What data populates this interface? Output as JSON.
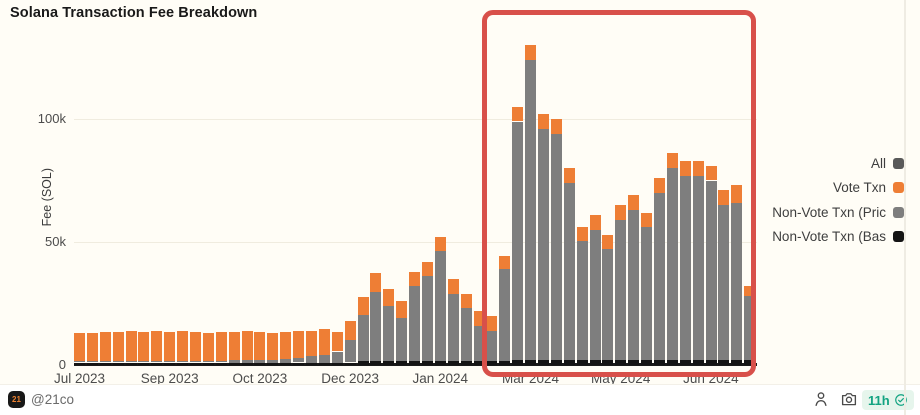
{
  "title": "Solana Transaction Fee Breakdown",
  "chart_data": {
    "type": "bar",
    "subtype": "stacked",
    "title": "Solana Transaction Fee Breakdown",
    "xlabel": "",
    "ylabel": "Fee (SOL)",
    "values_unit": "thousand SOL",
    "ylim": [
      0,
      140
    ],
    "grid": "horizontal",
    "legend_position": "right",
    "yticks": [
      {
        "value": 0,
        "label": "0"
      },
      {
        "value": 50,
        "label": "50k"
      },
      {
        "value": 100,
        "label": "100k"
      }
    ],
    "xticks": [
      {
        "bar_index": 0,
        "label": "Jul 2023"
      },
      {
        "bar_index": 7,
        "label": "Sep 2023"
      },
      {
        "bar_index": 14,
        "label": "Oct 2023"
      },
      {
        "bar_index": 21,
        "label": "Dec 2023"
      },
      {
        "bar_index": 28,
        "label": "Jan 2024"
      },
      {
        "bar_index": 35,
        "label": "Mar 2024"
      },
      {
        "bar_index": 42,
        "label": "May 2024"
      },
      {
        "bar_index": 49,
        "label": "Jun 2024"
      }
    ],
    "series": [
      {
        "name": "All",
        "color": "#595959",
        "role": "total"
      },
      {
        "name": "Vote Txn",
        "color": "#ee7e35",
        "key": "vote"
      },
      {
        "name": "Non-Vote Txn (Pric",
        "color": "#7e7e7e",
        "key": "priority"
      },
      {
        "name": "Non-Vote Txn (Bas",
        "color": "#141414",
        "key": "base"
      }
    ],
    "stack_order": [
      "base",
      "priority",
      "vote"
    ],
    "bars": {
      "base": [
        1,
        1,
        1,
        1,
        1,
        1,
        1,
        1,
        1,
        1,
        1,
        1,
        1,
        1,
        1,
        1,
        1,
        1,
        1,
        1,
        1,
        1,
        1.5,
        1.5,
        1.5,
        1.5,
        1.5,
        1.5,
        1.5,
        1.5,
        1.5,
        1.5,
        1.5,
        1.5,
        2,
        2,
        2,
        2,
        2,
        2,
        2,
        2,
        2,
        2,
        2,
        2,
        2,
        2,
        2,
        2,
        2,
        2,
        2
      ],
      "priority": [
        0.5,
        0.5,
        0.5,
        0.5,
        0.5,
        0.5,
        0.5,
        0.5,
        0.7,
        0.7,
        0.7,
        0.7,
        1,
        1,
        1.2,
        1.2,
        1.5,
        2,
        2.5,
        3,
        4.5,
        9,
        19,
        28,
        22.5,
        17.5,
        30.5,
        34.5,
        45,
        27.5,
        21.5,
        14.5,
        12.5,
        37.5,
        97,
        122,
        94,
        92,
        72,
        48.5,
        53,
        45,
        57,
        61,
        54,
        68,
        78,
        75,
        75,
        73,
        63,
        64,
        26
      ],
      "vote": [
        11.5,
        11.5,
        12,
        12,
        12.5,
        12,
        12.5,
        12,
        12.3,
        11.8,
        11.3,
        11.8,
        11.5,
        12,
        11.3,
        10.8,
        11,
        11,
        10.5,
        10.5,
        8,
        8,
        7,
        8,
        7,
        7,
        6,
        6,
        5.5,
        6,
        6,
        6,
        6,
        5.5,
        6,
        6,
        6,
        6,
        6,
        5.5,
        6,
        6,
        6,
        6,
        6,
        6,
        6,
        6,
        6,
        6,
        6,
        7,
        4
      ]
    },
    "highlight": {
      "color": "#d8504a",
      "start_bar_index": 32,
      "end_bar_index": 51
    }
  },
  "footer": {
    "badge_text": "21",
    "handle": "@21co",
    "timestamp": "11h"
  }
}
